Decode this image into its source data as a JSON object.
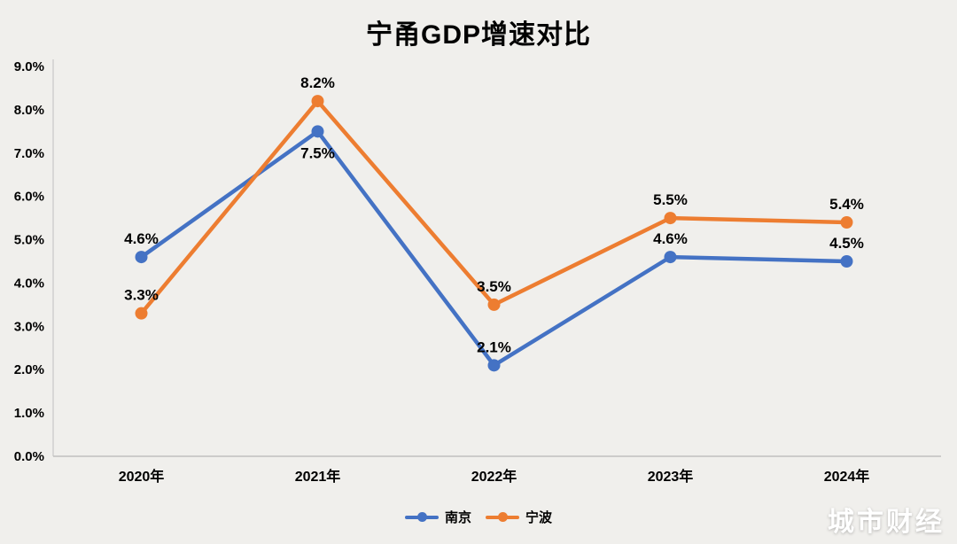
{
  "chart_data": {
    "type": "line",
    "title": "宁甬GDP增速对比",
    "categories": [
      "2020年",
      "2021年",
      "2022年",
      "2023年",
      "2024年"
    ],
    "series": [
      {
        "name": "南京",
        "key": "nanjing",
        "color": "#4472C4",
        "values": [
          4.6,
          7.5,
          2.1,
          4.6,
          4.5
        ],
        "data_labels": [
          "4.6%",
          "7.5%",
          "2.1%",
          "4.6%",
          "4.5%"
        ],
        "label_positions": [
          "above",
          "below",
          "above",
          "above",
          "above"
        ]
      },
      {
        "name": "宁波",
        "key": "ningbo",
        "color": "#ED7D31",
        "values": [
          3.3,
          8.2,
          3.5,
          5.5,
          5.4
        ],
        "data_labels": [
          "3.3%",
          "8.2%",
          "3.5%",
          "5.5%",
          "5.4%"
        ],
        "label_positions": [
          "above",
          "above",
          "above",
          "above",
          "above"
        ]
      }
    ],
    "ylim": [
      0,
      9
    ],
    "ytick_step": 1,
    "ytick_labels": [
      "0.0%",
      "1.0%",
      "2.0%",
      "3.0%",
      "4.0%",
      "5.0%",
      "6.0%",
      "7.0%",
      "8.0%",
      "9.0%"
    ],
    "xlabel": "",
    "ylabel": "",
    "grid": false,
    "legend_position": "bottom"
  },
  "watermark": "城市财经",
  "colors": {
    "background": "#f0efec",
    "axis": "#bfbfbf",
    "text": "#000000"
  }
}
